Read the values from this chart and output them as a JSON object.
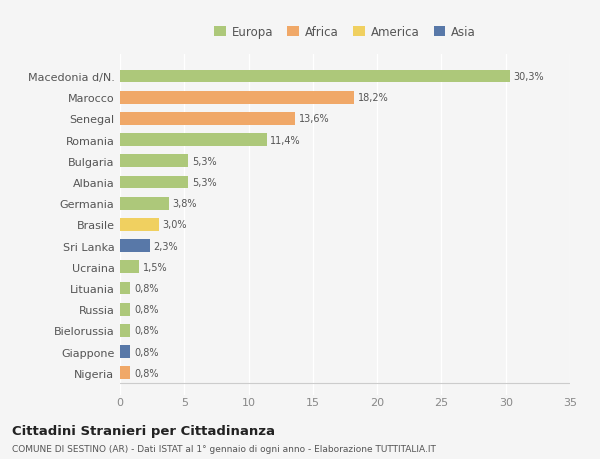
{
  "categories": [
    "Macedonia d/N.",
    "Marocco",
    "Senegal",
    "Romania",
    "Bulgaria",
    "Albania",
    "Germania",
    "Brasile",
    "Sri Lanka",
    "Ucraina",
    "Lituania",
    "Russia",
    "Bielorussia",
    "Giappone",
    "Nigeria"
  ],
  "values": [
    30.3,
    18.2,
    13.6,
    11.4,
    5.3,
    5.3,
    3.8,
    3.0,
    2.3,
    1.5,
    0.8,
    0.8,
    0.8,
    0.8,
    0.8
  ],
  "labels": [
    "30,3%",
    "18,2%",
    "13,6%",
    "11,4%",
    "5,3%",
    "5,3%",
    "3,8%",
    "3,0%",
    "2,3%",
    "1,5%",
    "0,8%",
    "0,8%",
    "0,8%",
    "0,8%",
    "0,8%"
  ],
  "colors": [
    "#adc87a",
    "#f0a868",
    "#f0a868",
    "#adc87a",
    "#adc87a",
    "#adc87a",
    "#adc87a",
    "#f0d060",
    "#5878a8",
    "#adc87a",
    "#adc87a",
    "#adc87a",
    "#adc87a",
    "#5878a8",
    "#f0a868"
  ],
  "legend_labels": [
    "Europa",
    "Africa",
    "America",
    "Asia"
  ],
  "legend_colors": [
    "#adc87a",
    "#f0a868",
    "#f0d060",
    "#5878a8"
  ],
  "xlim": [
    0,
    35
  ],
  "xticks": [
    0,
    5,
    10,
    15,
    20,
    25,
    30,
    35
  ],
  "title": "Cittadini Stranieri per Cittadinanza",
  "subtitle": "COMUNE DI SESTINO (AR) - Dati ISTAT al 1° gennaio di ogni anno - Elaborazione TUTTITALIA.IT",
  "bg_color": "#f5f5f5",
  "plot_bg": "#f5f5f5",
  "grid_color": "#ffffff",
  "bar_height": 0.6
}
